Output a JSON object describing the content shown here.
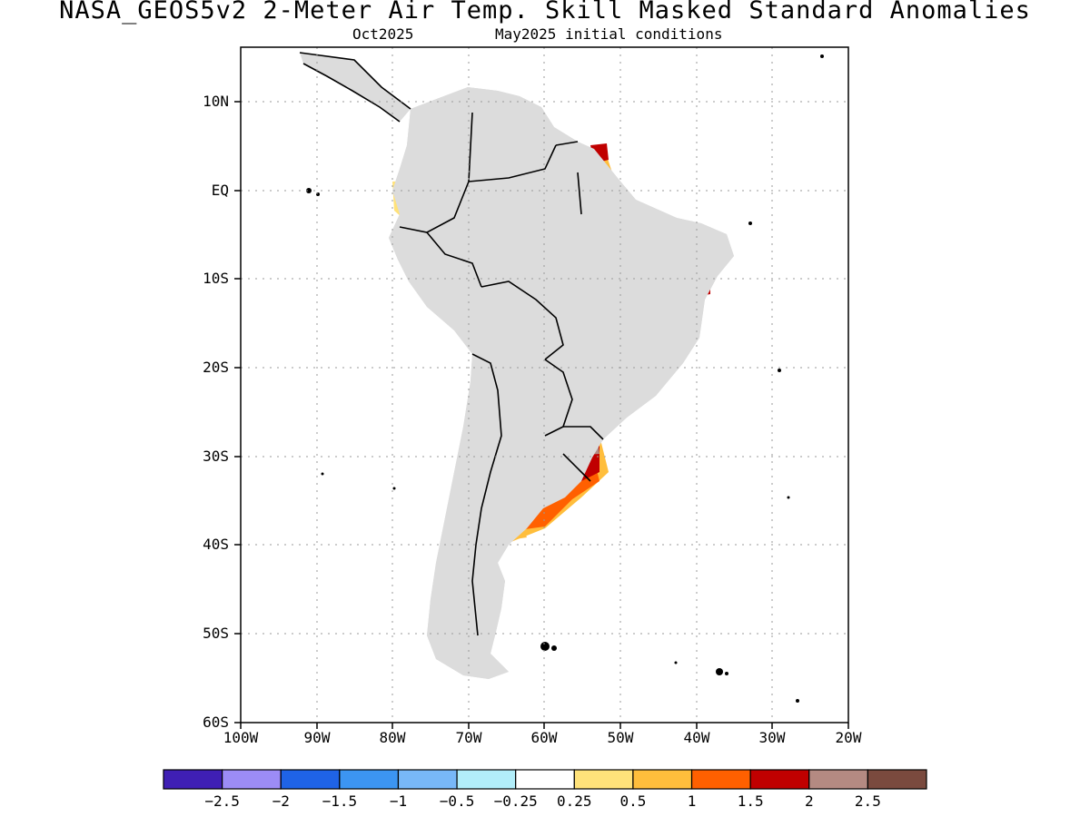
{
  "title": "NASA_GEOS5v2 2-Meter Air Temp. Skill Masked Standard Anomalies",
  "subtitle_month": "Oct2025",
  "subtitle_ic": "May2025 initial conditions",
  "map": {
    "lat_range": [
      -60,
      16
    ],
    "lon_range": [
      -100,
      -20
    ],
    "lat_ticks": [
      "10N",
      "EQ",
      "10S",
      "20S",
      "30S",
      "40S",
      "50S",
      "60S"
    ],
    "lon_ticks": [
      "100W",
      "90W",
      "80W",
      "70W",
      "60W",
      "50W",
      "40W",
      "30W",
      "20W"
    ],
    "masked_color": "#dcdcdc",
    "gridlines": "dotted"
  },
  "colorbar": {
    "colors": [
      "#3f1fb4",
      "#9c8cf6",
      "#1f63e6",
      "#3c95f2",
      "#78b8f8",
      "#b2eefa",
      "#ffffff",
      "#ffe27a",
      "#ffbe3c",
      "#ff6000",
      "#c00000",
      "#b48a82",
      "#7a4a3e"
    ],
    "labels": [
      "-2.5",
      "-2",
      "-1.5",
      "-1",
      "-0.5",
      "-0.25",
      "0.25",
      "0.5",
      "1",
      "1.5",
      "2",
      "2.5"
    ]
  }
}
